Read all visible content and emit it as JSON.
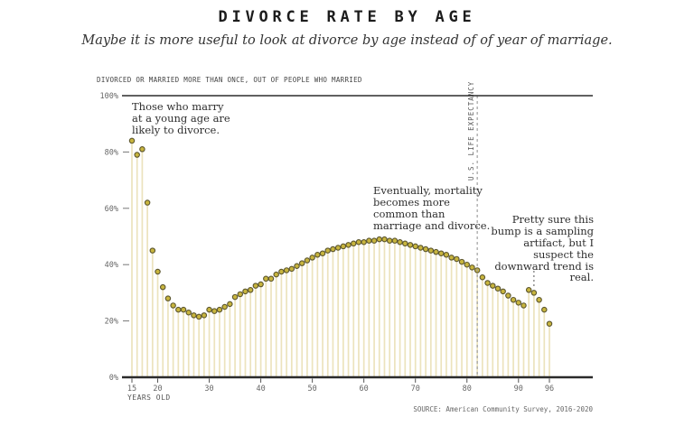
{
  "header": {
    "title": "DIVORCE RATE BY AGE",
    "subtitle": "Maybe it is more useful to look at divorce by age instead of of year of marriage."
  },
  "chart": {
    "caption": "DIVORCED OR MARRIED MORE THAN ONCE, OUT OF PEOPLE WHO MARRIED",
    "x_axis_label": "YEARS OLD",
    "source": "SOURCE: American Community Survey, 2016-2020"
  },
  "annotations": {
    "young": {
      "text": "Those who marry\nat a young age are\nlikely to divorce."
    },
    "mortality": {
      "text": "Eventually, mortality\nbecomes more\ncommon than\nmarriage and divorce."
    },
    "bump": {
      "text": "Pretty sure this\nbump is a sampling\nartifact, but I\nsuspect the\ndownward trend is\nreal."
    },
    "life_expectancy": {
      "label": "U.S. LIFE EXPECTANCY",
      "age": 82
    },
    "bump_pointer_age": 93
  },
  "chart_data": {
    "type": "scatter",
    "style": "lollipop",
    "title": "DIVORCE RATE BY AGE",
    "xlabel": "YEARS OLD",
    "ylabel": "DIVORCED OR MARRIED MORE THAN ONCE, OUT OF PEOPLE WHO MARRIED (%)",
    "xlim": [
      13.5,
      98.5
    ],
    "ylim": [
      0,
      100
    ],
    "grid": false,
    "legend": "none",
    "x_ticks": [
      15,
      20,
      30,
      40,
      50,
      60,
      70,
      80,
      90,
      96
    ],
    "y_ticks": [
      0,
      20,
      40,
      60,
      80,
      100
    ],
    "y_tick_labels": [
      "0%",
      "20%",
      "40%",
      "60%",
      "80%",
      "100%"
    ],
    "points": [
      [
        15,
        84
      ],
      [
        16,
        79
      ],
      [
        17,
        81
      ],
      [
        18,
        62
      ],
      [
        19,
        45
      ],
      [
        20,
        37.5
      ],
      [
        21,
        32
      ],
      [
        22,
        28
      ],
      [
        23,
        25.5
      ],
      [
        24,
        24
      ],
      [
        25,
        24
      ],
      [
        26,
        23
      ],
      [
        27,
        22
      ],
      [
        28,
        21.5
      ],
      [
        29,
        22
      ],
      [
        30,
        24
      ],
      [
        31,
        23.5
      ],
      [
        32,
        24
      ],
      [
        33,
        25
      ],
      [
        34,
        26
      ],
      [
        35,
        28.5
      ],
      [
        36,
        29.5
      ],
      [
        37,
        30.5
      ],
      [
        38,
        31
      ],
      [
        39,
        32.5
      ],
      [
        40,
        33
      ],
      [
        41,
        35
      ],
      [
        42,
        35
      ],
      [
        43,
        36.5
      ],
      [
        44,
        37.5
      ],
      [
        45,
        38
      ],
      [
        46,
        38.5
      ],
      [
        47,
        39.5
      ],
      [
        48,
        40.5
      ],
      [
        49,
        41.5
      ],
      [
        50,
        42.5
      ],
      [
        51,
        43.5
      ],
      [
        52,
        44
      ],
      [
        53,
        45
      ],
      [
        54,
        45.5
      ],
      [
        55,
        46
      ],
      [
        56,
        46.5
      ],
      [
        57,
        47
      ],
      [
        58,
        47.5
      ],
      [
        59,
        48
      ],
      [
        60,
        48
      ],
      [
        61,
        48.5
      ],
      [
        62,
        48.5
      ],
      [
        63,
        49
      ],
      [
        64,
        49
      ],
      [
        65,
        48.5
      ],
      [
        66,
        48.5
      ],
      [
        67,
        48
      ],
      [
        68,
        47.5
      ],
      [
        69,
        47
      ],
      [
        70,
        46.5
      ],
      [
        71,
        46
      ],
      [
        72,
        45.5
      ],
      [
        73,
        45
      ],
      [
        74,
        44.5
      ],
      [
        75,
        44
      ],
      [
        76,
        43.5
      ],
      [
        77,
        42.5
      ],
      [
        78,
        42
      ],
      [
        79,
        41
      ],
      [
        80,
        40
      ],
      [
        81,
        39
      ],
      [
        82,
        38
      ],
      [
        83,
        35.5
      ],
      [
        84,
        33.5
      ],
      [
        85,
        32.5
      ],
      [
        86,
        31.5
      ],
      [
        87,
        30.5
      ],
      [
        88,
        29
      ],
      [
        89,
        27.5
      ],
      [
        90,
        26.5
      ],
      [
        91,
        25.5
      ],
      [
        92,
        31
      ],
      [
        93,
        30
      ],
      [
        94,
        27.5
      ],
      [
        95,
        24
      ],
      [
        96,
        19
      ]
    ],
    "colors": {
      "dot_fill": "#c8b53e",
      "dot_stroke": "#5c562f",
      "stem": "#ece3bd",
      "axis": "#2b2b2b",
      "tick_text": "#666666",
      "dashed_line": "#a0a0a0",
      "pointer_line": "#555555"
    }
  }
}
